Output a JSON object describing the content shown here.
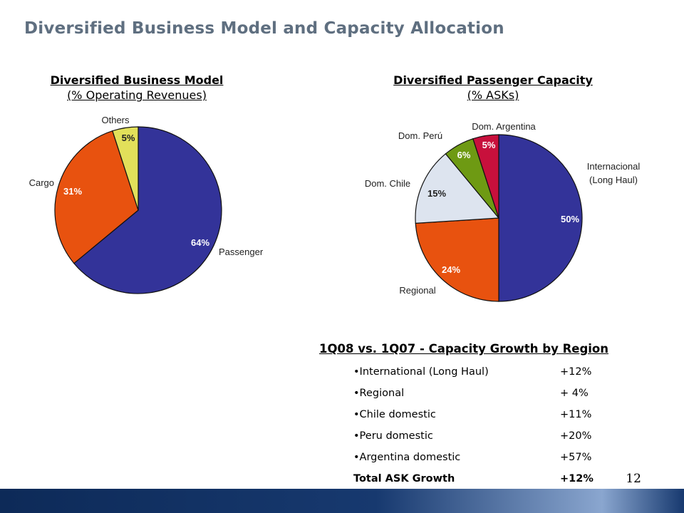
{
  "page": {
    "title": "Diversified Business Model and Capacity Allocation",
    "page_number": "12"
  },
  "colors": {
    "navy": "#333399",
    "orange": "#e8520f",
    "yellow": "#e2e05a",
    "light": "#dde4ef",
    "green": "#6e9a13",
    "crimson": "#c8103c",
    "title": "#5f6f80"
  },
  "chart_data": [
    {
      "type": "pie",
      "title": "Diversified Business Model",
      "subtitle": "(% Operating Revenues)",
      "slices": [
        {
          "name": "Passenger",
          "value": 64,
          "label": "64%",
          "color": "#333399"
        },
        {
          "name": "Cargo",
          "value": 31,
          "label": "31%",
          "color": "#e8520f"
        },
        {
          "name": "Others",
          "value": 5,
          "label": "5%",
          "color": "#e2e05a"
        }
      ]
    },
    {
      "type": "pie",
      "title": "Diversified Passenger Capacity",
      "subtitle": "(% ASKs)",
      "slices": [
        {
          "name": "Internacional (Long Haul)",
          "value": 50,
          "label": "50%",
          "color": "#333399"
        },
        {
          "name": "Regional",
          "value": 24,
          "label": "24%",
          "color": "#e8520f"
        },
        {
          "name": "Dom. Chile",
          "value": 15,
          "label": "15%",
          "color": "#dde4ef"
        },
        {
          "name": "Dom. Perú",
          "value": 6,
          "label": "6%",
          "color": "#6e9a13"
        },
        {
          "name": "Dom. Argentina",
          "value": 5,
          "label": "5%",
          "color": "#c8103c"
        }
      ]
    }
  ],
  "growth": {
    "title": "1Q08 vs. 1Q07 - Capacity Growth by Region",
    "rows": [
      {
        "label": "•International (Long Haul)",
        "value": "+12%"
      },
      {
        "label": "•Regional",
        "value": "+ 4%"
      },
      {
        "label": "•Chile domestic",
        "value": "+11%"
      },
      {
        "label": "•Peru domestic",
        "value": "+20%"
      },
      {
        "label": "•Argentina domestic",
        "value": "+57%"
      }
    ],
    "total": {
      "label": "Total ASK Growth",
      "value": "+12%"
    }
  }
}
